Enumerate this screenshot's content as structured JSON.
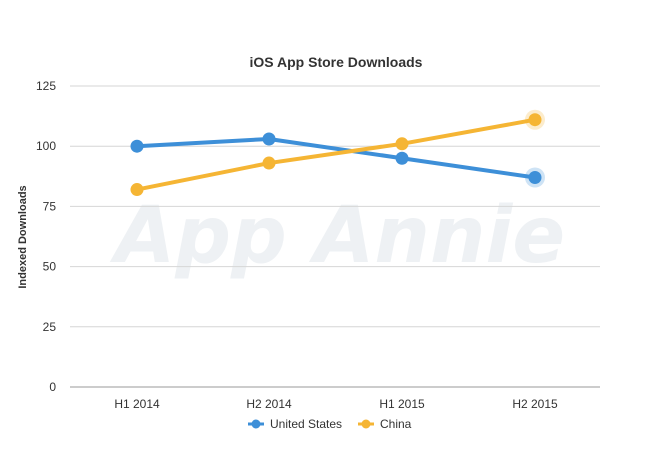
{
  "chart_data": {
    "type": "line",
    "title": "iOS App Store Downloads",
    "xlabel": "",
    "ylabel": "Indexed Downloads",
    "categories": [
      "H1 2014",
      "H2 2014",
      "H1 2015",
      "H2 2015"
    ],
    "ylim": [
      0,
      125
    ],
    "yticks": [
      "0",
      "25",
      "50",
      "75",
      "100",
      "125"
    ],
    "grid": true,
    "legend_position": "bottom",
    "watermark": "App Annie",
    "series": [
      {
        "name": "United States",
        "color": "#3d8fd8",
        "values": [
          100,
          103,
          95,
          87
        ]
      },
      {
        "name": "China",
        "color": "#f5b534",
        "values": [
          82,
          93,
          101,
          111
        ]
      }
    ]
  }
}
